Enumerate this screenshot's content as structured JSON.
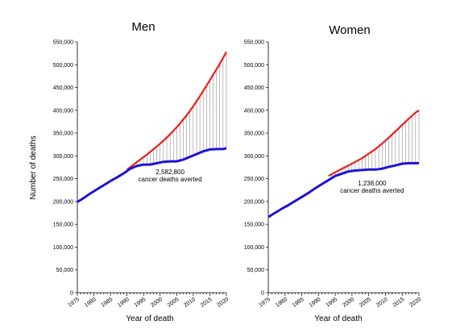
{
  "shared": {
    "ylabel": "Number of deaths",
    "xlabel": "Year of death",
    "x_ticks": [
      "1975",
      "1980",
      "1985",
      "1990",
      "1995",
      "2000",
      "2005",
      "2010",
      "2015",
      "2020"
    ],
    "y_ticks": [
      "0",
      "50,000",
      "100,000",
      "150,000",
      "200,000",
      "250,000",
      "300,000",
      "350,000",
      "400,000",
      "450,000",
      "500,000",
      "550,000"
    ]
  },
  "colors": {
    "expected": "#ee1c1c",
    "observed": "#1c14d6",
    "averted_lines": "#777777"
  },
  "chart_data": [
    {
      "type": "line",
      "title": "Men",
      "xlabel": "Year of death",
      "ylabel": "Number of deaths",
      "xlim": [
        1975,
        2020
      ],
      "ylim": [
        0,
        550000
      ],
      "annotation": {
        "value": "2,582,800",
        "text": "cancer deaths averted",
        "x": 2003,
        "y": 260000
      },
      "series": [
        {
          "role": "expected",
          "color": "#ee1c1c",
          "x": [
            1990,
            1992,
            1994,
            1996,
            1998,
            2000,
            2002,
            2004,
            2006,
            2008,
            2010,
            2012,
            2014,
            2016,
            2018,
            2020
          ],
          "values": [
            270000,
            281000,
            292000,
            303000,
            315000,
            327000,
            340000,
            355000,
            371000,
            389000,
            409000,
            431000,
            454000,
            478000,
            502000,
            528000
          ]
        },
        {
          "role": "observed",
          "color": "#1c14d6",
          "x": [
            1975,
            1977,
            1979,
            1981,
            1983,
            1985,
            1987,
            1989,
            1991,
            1993,
            1995,
            1997,
            1999,
            2001,
            2003,
            2005,
            2007,
            2009,
            2011,
            2013,
            2015,
            2017,
            2019,
            2020
          ],
          "values": [
            199000,
            208000,
            218000,
            227000,
            236000,
            245000,
            253000,
            262000,
            272000,
            278000,
            281000,
            281000,
            284000,
            287000,
            288000,
            288000,
            292000,
            298000,
            304000,
            310000,
            314000,
            315000,
            315000,
            317000
          ]
        }
      ]
    },
    {
      "type": "line",
      "title": "Women",
      "xlabel": "Year of death",
      "ylabel": "",
      "xlim": [
        1975,
        2020
      ],
      "ylim": [
        0,
        550000
      ],
      "annotation": {
        "value": "1,238,000",
        "text": "cancer deaths averted",
        "x": 2006,
        "y": 235000
      },
      "series": [
        {
          "role": "expected",
          "color": "#ee1c1c",
          "x": [
            1993,
            1995,
            1997,
            1999,
            2001,
            2003,
            2005,
            2007,
            2009,
            2011,
            2013,
            2015,
            2017,
            2019,
            2020
          ],
          "values": [
            256000,
            264000,
            272000,
            279000,
            287000,
            295000,
            305000,
            315000,
            327000,
            340000,
            354000,
            368000,
            382000,
            395000,
            400000
          ]
        },
        {
          "role": "observed",
          "color": "#1c14d6",
          "x": [
            1975,
            1977,
            1979,
            1981,
            1983,
            1985,
            1987,
            1989,
            1991,
            1993,
            1995,
            1997,
            1999,
            2001,
            2003,
            2005,
            2007,
            2009,
            2011,
            2013,
            2015,
            2017,
            2019,
            2020
          ],
          "values": [
            166000,
            175000,
            184000,
            192000,
            201000,
            210000,
            219000,
            229000,
            238000,
            247000,
            256000,
            261000,
            266000,
            268000,
            269000,
            270000,
            270000,
            272000,
            276000,
            279000,
            283000,
            284000,
            284000,
            284000
          ]
        }
      ]
    }
  ]
}
